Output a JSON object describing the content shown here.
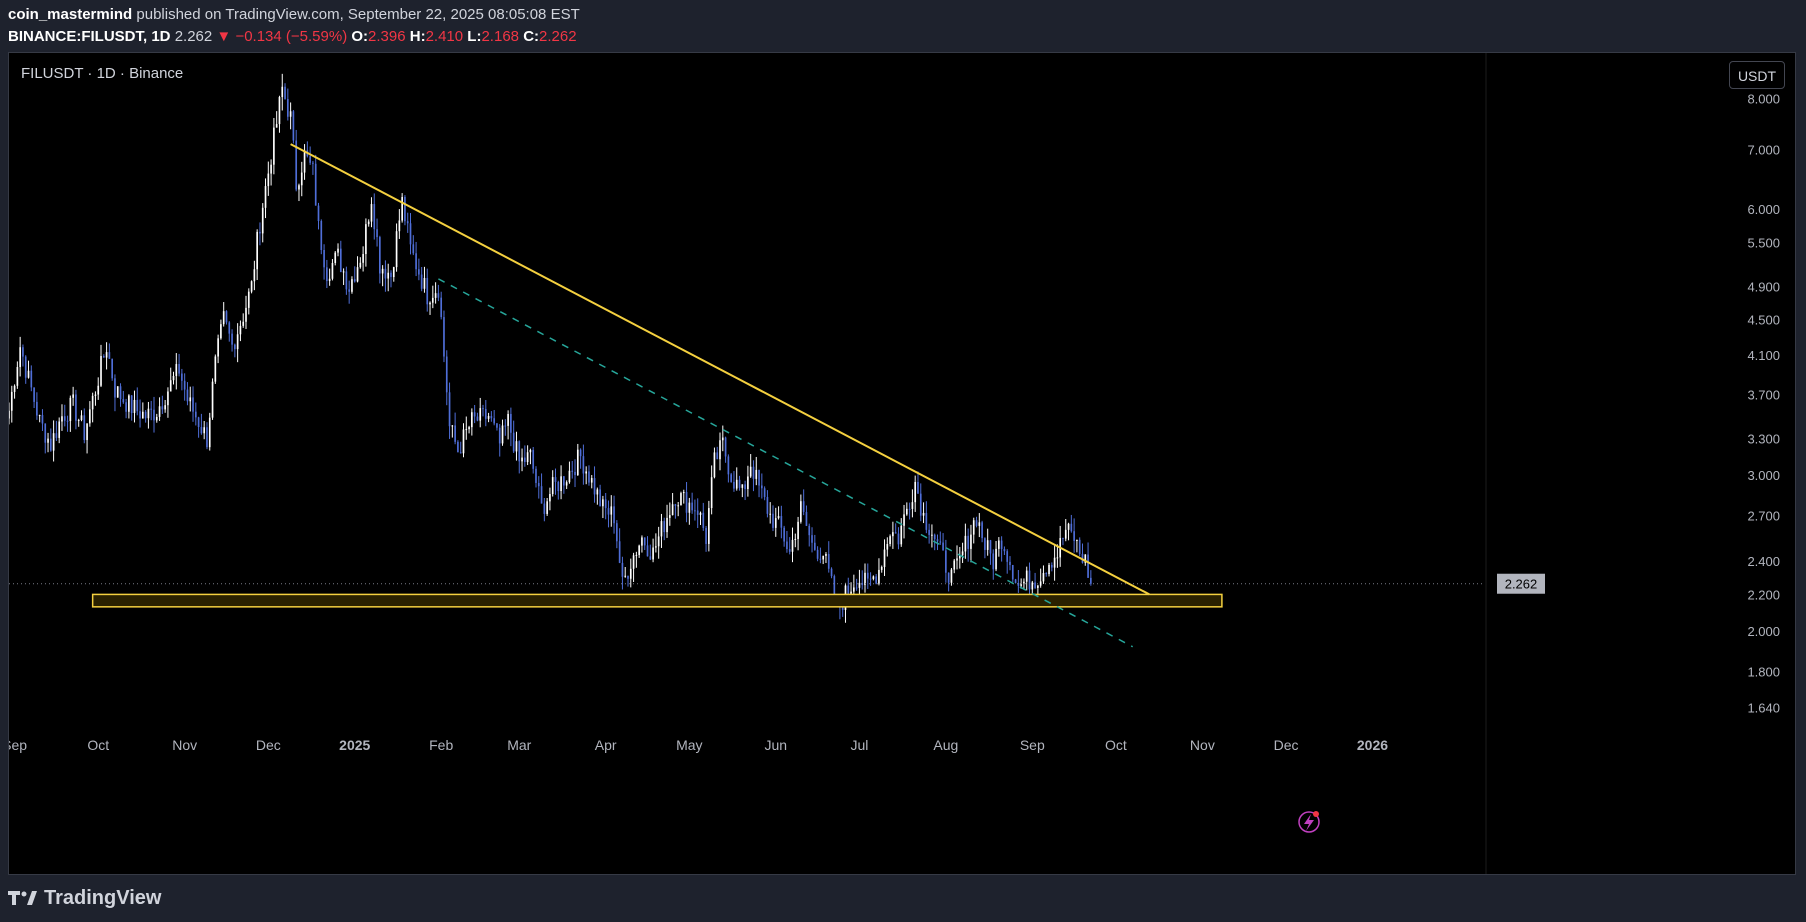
{
  "header": {
    "author": "coin_mastermind",
    "published_text": "published on TradingView.com, September 22, 2025 08:05:08 EST",
    "symbol": "BINANCE:FILUSDT, 1D",
    "last": "2.262",
    "change": "−0.134 (−5.59%)",
    "o_label": "O:",
    "o": "2.396",
    "h_label": "H:",
    "h": "2.410",
    "l_label": "L:",
    "l": "2.168",
    "c_label": "C:",
    "c": "2.262"
  },
  "chart_title": "FILUSDT · 1D · Binance",
  "currency_button": "USDT",
  "footer_brand": "TradingView",
  "colors": {
    "up_candle": "#ffffff",
    "down_candle": "#4f6ed8",
    "trendline": "#f4d03f",
    "dashed_line": "#26a69a",
    "support_zone_border": "#f4d03f",
    "support_zone_fill": "#2a2100",
    "price_label_bg": "#b2b5be",
    "background": "#000000"
  },
  "chart_data": {
    "type": "candlestick",
    "y_scale": "log",
    "ylim": [
      1.55,
      9.0
    ],
    "y_ticks": [
      "8.000",
      "7.000",
      "6.000",
      "5.500",
      "4.900",
      "4.500",
      "4.100",
      "3.700",
      "3.300",
      "3.000",
      "2.700",
      "2.400",
      "2.200",
      "2.000",
      "1.800",
      "1.640"
    ],
    "x_ticks": [
      "Sep",
      "Oct",
      "Nov",
      "Dec",
      "2025",
      "Feb",
      "Mar",
      "Apr",
      "May",
      "Jun",
      "Jul",
      "Aug",
      "Sep",
      "Oct",
      "Nov",
      "Dec",
      "2026"
    ],
    "x_start": "2024-08-30",
    "x_end": "2026-02-10",
    "last_price_label": "2.262",
    "close_series": {
      "points": [
        [
          "2024-08-30",
          3.55
        ],
        [
          "2024-09-03",
          4.2
        ],
        [
          "2024-09-06",
          3.85
        ],
        [
          "2024-09-10",
          3.45
        ],
        [
          "2024-09-14",
          3.25
        ],
        [
          "2024-09-18",
          3.5
        ],
        [
          "2024-09-22",
          3.6
        ],
        [
          "2024-09-26",
          3.35
        ],
        [
          "2024-09-30",
          3.75
        ],
        [
          "2024-10-04",
          4.2
        ],
        [
          "2024-10-07",
          3.75
        ],
        [
          "2024-10-12",
          3.6
        ],
        [
          "2024-10-18",
          3.5
        ],
        [
          "2024-10-22",
          3.55
        ],
        [
          "2024-10-26",
          3.75
        ],
        [
          "2024-10-30",
          3.95
        ],
        [
          "2024-11-02",
          3.65
        ],
        [
          "2024-11-06",
          3.45
        ],
        [
          "2024-11-09",
          3.3
        ],
        [
          "2024-11-12",
          4.0
        ],
        [
          "2024-11-15",
          4.5
        ],
        [
          "2024-11-18",
          4.2
        ],
        [
          "2024-11-22",
          4.55
        ],
        [
          "2024-11-25",
          4.9
        ],
        [
          "2024-11-28",
          5.8
        ],
        [
          "2024-12-01",
          6.6
        ],
        [
          "2024-12-04",
          7.5
        ],
        [
          "2024-12-06",
          8.2
        ],
        [
          "2024-12-09",
          7.6
        ],
        [
          "2024-12-11",
          6.4
        ],
        [
          "2024-12-14",
          6.9
        ],
        [
          "2024-12-17",
          6.6
        ],
        [
          "2024-12-19",
          5.7
        ],
        [
          "2024-12-22",
          5.1
        ],
        [
          "2024-12-26",
          5.3
        ],
        [
          "2024-12-30",
          4.9
        ],
        [
          "2025-01-04",
          5.4
        ],
        [
          "2025-01-07",
          6.2
        ],
        [
          "2025-01-10",
          5.2
        ],
        [
          "2025-01-14",
          5.05
        ],
        [
          "2025-01-18",
          6.1
        ],
        [
          "2025-01-21",
          5.4
        ],
        [
          "2025-01-24",
          5.1
        ],
        [
          "2025-01-27",
          4.8
        ],
        [
          "2025-01-31",
          4.9
        ],
        [
          "2025-02-02",
          4.1
        ],
        [
          "2025-02-04",
          3.4
        ],
        [
          "2025-02-07",
          3.2
        ],
        [
          "2025-02-12",
          3.45
        ],
        [
          "2025-02-18",
          3.5
        ],
        [
          "2025-02-22",
          3.25
        ],
        [
          "2025-02-25",
          3.45
        ],
        [
          "2025-03-01",
          3.1
        ],
        [
          "2025-03-05",
          3.15
        ],
        [
          "2025-03-09",
          2.75
        ],
        [
          "2025-03-13",
          2.9
        ],
        [
          "2025-03-18",
          3.0
        ],
        [
          "2025-03-23",
          3.15
        ],
        [
          "2025-03-27",
          2.95
        ],
        [
          "2025-03-31",
          2.75
        ],
        [
          "2025-04-04",
          2.7
        ],
        [
          "2025-04-07",
          2.25
        ],
        [
          "2025-04-10",
          2.4
        ],
        [
          "2025-04-14",
          2.55
        ],
        [
          "2025-04-18",
          2.45
        ],
        [
          "2025-04-22",
          2.65
        ],
        [
          "2025-04-26",
          2.85
        ],
        [
          "2025-04-30",
          2.8
        ],
        [
          "2025-05-04",
          2.75
        ],
        [
          "2025-05-07",
          2.55
        ],
        [
          "2025-05-10",
          3.1
        ],
        [
          "2025-05-13",
          3.25
        ],
        [
          "2025-05-16",
          3.0
        ],
        [
          "2025-05-20",
          2.85
        ],
        [
          "2025-05-23",
          3.1
        ],
        [
          "2025-05-26",
          2.9
        ],
        [
          "2025-05-30",
          2.7
        ],
        [
          "2025-06-03",
          2.6
        ],
        [
          "2025-06-06",
          2.45
        ],
        [
          "2025-06-10",
          2.75
        ],
        [
          "2025-06-14",
          2.5
        ],
        [
          "2025-06-18",
          2.45
        ],
        [
          "2025-06-21",
          2.25
        ],
        [
          "2025-06-23",
          2.1
        ],
        [
          "2025-06-26",
          2.2
        ],
        [
          "2025-06-30",
          2.3
        ],
        [
          "2025-07-04",
          2.25
        ],
        [
          "2025-07-08",
          2.35
        ],
        [
          "2025-07-12",
          2.6
        ],
        [
          "2025-07-15",
          2.55
        ],
        [
          "2025-07-18",
          2.75
        ],
        [
          "2025-07-21",
          2.95
        ],
        [
          "2025-07-24",
          2.7
        ],
        [
          "2025-07-27",
          2.6
        ],
        [
          "2025-07-30",
          2.45
        ],
        [
          "2025-08-03",
          2.3
        ],
        [
          "2025-08-06",
          2.4
        ],
        [
          "2025-08-09",
          2.55
        ],
        [
          "2025-08-12",
          2.7
        ],
        [
          "2025-08-15",
          2.5
        ],
        [
          "2025-08-18",
          2.4
        ],
        [
          "2025-08-21",
          2.55
        ],
        [
          "2025-08-24",
          2.4
        ],
        [
          "2025-08-27",
          2.25
        ],
        [
          "2025-08-30",
          2.28
        ],
        [
          "2025-09-03",
          2.3
        ],
        [
          "2025-09-07",
          2.4
        ],
        [
          "2025-09-10",
          2.45
        ],
        [
          "2025-09-13",
          2.6
        ],
        [
          "2025-09-16",
          2.55
        ],
        [
          "2025-09-18",
          2.45
        ],
        [
          "2025-09-20",
          2.4
        ],
        [
          "2025-09-22",
          2.262
        ]
      ]
    },
    "trendline": {
      "from": [
        "2024-12-09",
        7.1
      ],
      "to": [
        "2025-10-13",
        2.2
      ]
    },
    "dashed_trendline": {
      "from": [
        "2025-01-31",
        5.0
      ],
      "to": [
        "2025-10-07",
        1.92
      ]
    },
    "support_zone": {
      "from": "2024-09-29",
      "to": "2025-11-08",
      "top": 2.2,
      "bottom": 2.13
    }
  }
}
